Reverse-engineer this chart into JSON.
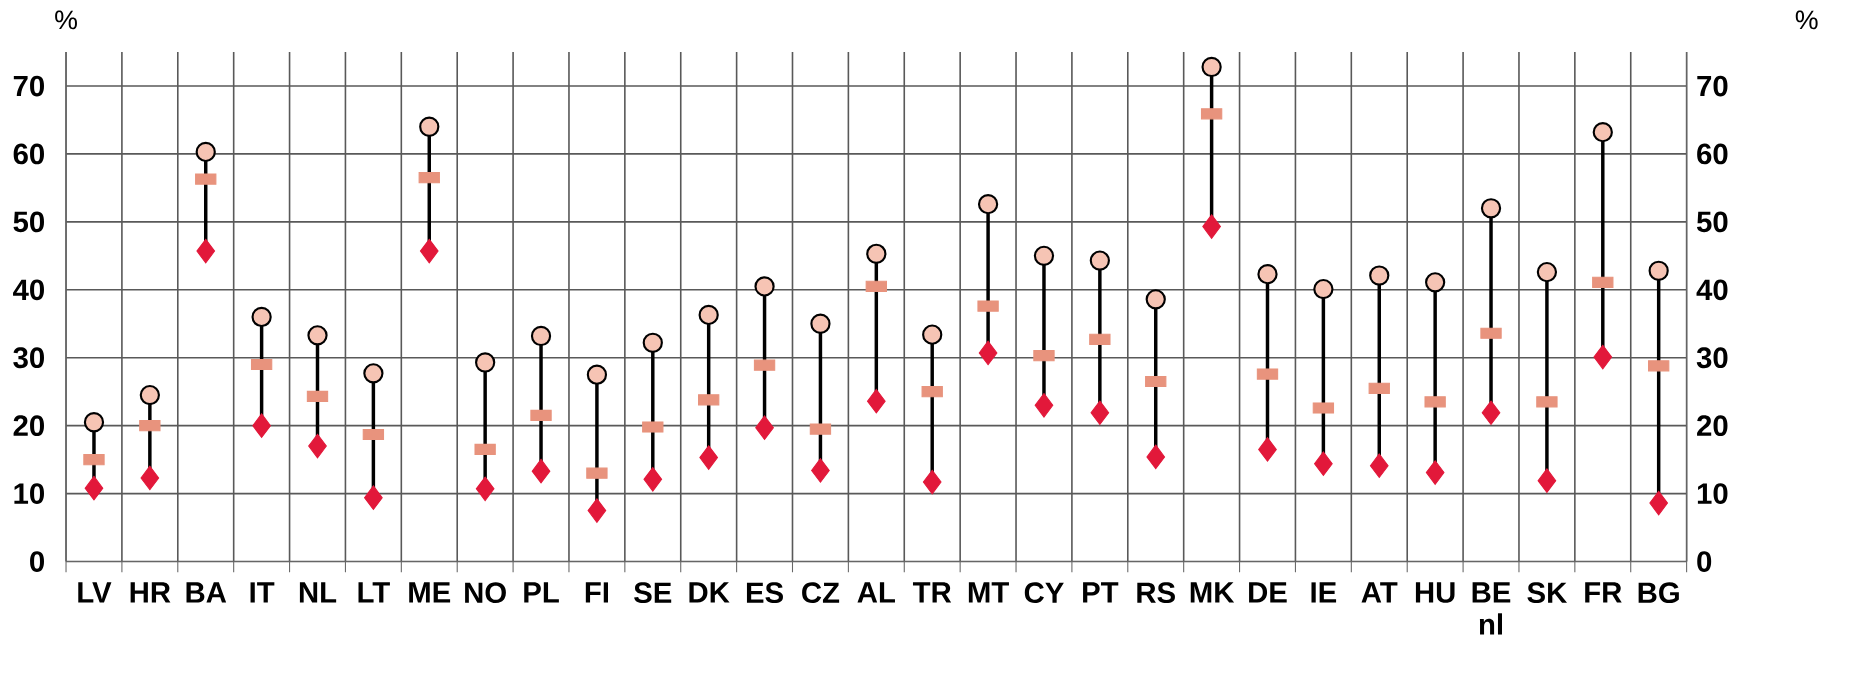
{
  "chart_data": {
    "type": "scatter",
    "ylabel": "%",
    "y2label": "%",
    "categories": [
      "LV",
      "HR",
      "BA",
      "IT",
      "NL",
      "LT",
      "ME",
      "NO",
      "PL",
      "FI",
      "SE",
      "DK",
      "ES",
      "CZ",
      "AL",
      "TR",
      "MT",
      "CY",
      "PT",
      "RS",
      "MK",
      "DE",
      "IE",
      "AT",
      "HU",
      "BE nl",
      "SK",
      "FR",
      "BG"
    ],
    "series": [
      {
        "color": "#f6c4b4",
        "marker": "circle",
        "values": [
          20.5,
          24.5,
          60.3,
          36,
          33.3,
          27.7,
          64,
          29.3,
          33.2,
          27.5,
          32.2,
          36.3,
          40.5,
          35,
          45.3,
          33.4,
          52.6,
          45,
          44.3,
          38.6,
          72.8,
          42.3,
          40.1,
          42.1,
          41.1,
          52,
          42.6,
          63.2,
          42.8
        ]
      },
      {
        "color": "#e8937d",
        "marker": "square",
        "values": [
          15,
          20,
          56.3,
          29,
          24.3,
          18.7,
          56.5,
          16.5,
          21.5,
          13,
          19.8,
          23.8,
          28.9,
          19.5,
          40.5,
          25,
          37.6,
          30.3,
          32.7,
          26.5,
          65.9,
          27.6,
          22.6,
          25.5,
          23.5,
          33.6,
          23.5,
          41.1,
          28.8
        ]
      },
      {
        "color": "#e2183a",
        "marker": "diamond",
        "values": [
          10.8,
          12.3,
          45.7,
          20,
          17,
          9.4,
          45.7,
          10.7,
          13.3,
          7.5,
          12.1,
          15.3,
          19.7,
          13.4,
          23.6,
          11.7,
          30.7,
          23,
          21.9,
          15.4,
          49.3,
          16.5,
          14.4,
          14.1,
          13.1,
          21.9,
          11.9,
          30.1,
          8.6
        ]
      }
    ],
    "ylim": [
      0,
      75
    ],
    "yticks": [
      0,
      10,
      20,
      30,
      40,
      50,
      60,
      70
    ],
    "y2lim": [
      0,
      75
    ],
    "y2ticks": [
      0,
      10,
      20,
      30,
      40,
      50,
      60,
      70
    ],
    "grid": true
  }
}
